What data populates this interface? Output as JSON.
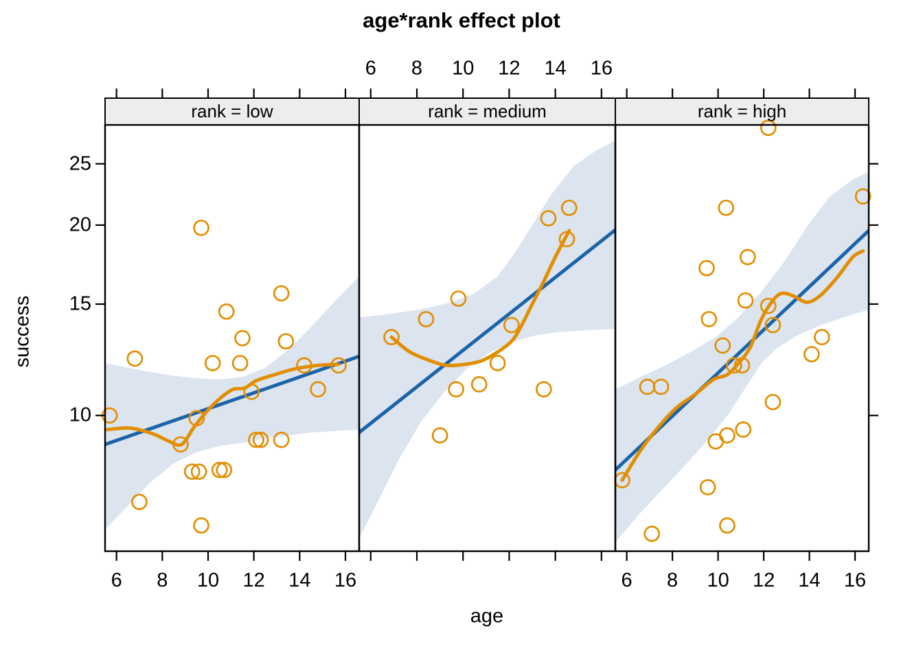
{
  "title": "age*rank effect plot",
  "colors": {
    "points_and_smooth": "#E28E00",
    "fit_line": "#1C63A8",
    "confidence_band": "#DBE4EF",
    "strip_background": "#EDEDED",
    "border": "#000000",
    "text": "#000000"
  },
  "chart_data": {
    "type": "scatter",
    "title": "age*rank effect plot",
    "xlabel": "age",
    "ylabel": "success",
    "x_ticks": [
      6,
      8,
      10,
      12,
      14,
      16
    ],
    "y_ticks": [
      10,
      15,
      20,
      25
    ],
    "x_range": [
      5.5,
      16.6
    ],
    "y_range": [
      6.1,
      28.8
    ],
    "y_scale": "log",
    "legend_position": "none",
    "grid": false,
    "panels": [
      {
        "strip_label": "rank = low",
        "points": [
          [
            5.7,
            10.0
          ],
          [
            6.8,
            12.3
          ],
          [
            7.0,
            7.3
          ],
          [
            8.8,
            9.0
          ],
          [
            9.3,
            8.15
          ],
          [
            9.5,
            9.9
          ],
          [
            9.6,
            8.15
          ],
          [
            9.7,
            19.8
          ],
          [
            9.7,
            6.7
          ],
          [
            10.2,
            12.1
          ],
          [
            10.5,
            8.2
          ],
          [
            10.7,
            8.2
          ],
          [
            10.8,
            14.6
          ],
          [
            11.4,
            12.1
          ],
          [
            11.5,
            13.25
          ],
          [
            11.9,
            10.9
          ],
          [
            12.1,
            9.15
          ],
          [
            12.3,
            9.15
          ],
          [
            13.2,
            15.6
          ],
          [
            13.2,
            9.15
          ],
          [
            13.4,
            13.1
          ],
          [
            14.2,
            12.0
          ],
          [
            14.8,
            11.0
          ],
          [
            15.7,
            12.0
          ]
        ],
        "fit_line": [
          [
            5.5,
            9.0
          ],
          [
            16.6,
            12.4
          ]
        ],
        "smooth": [
          [
            5.6,
            9.5
          ],
          [
            6.6,
            9.55
          ],
          [
            7.6,
            9.35
          ],
          [
            8.3,
            9.1
          ],
          [
            8.85,
            9.0
          ],
          [
            9.4,
            9.6
          ],
          [
            10.0,
            10.2
          ],
          [
            10.6,
            10.7
          ],
          [
            11.1,
            11.0
          ],
          [
            11.6,
            11.05
          ],
          [
            12.1,
            11.35
          ],
          [
            12.9,
            11.6
          ],
          [
            13.8,
            11.85
          ],
          [
            14.8,
            12.0
          ],
          [
            15.7,
            12.05
          ]
        ],
        "band_upper": [
          [
            5.5,
            12.1
          ],
          [
            7.0,
            11.8
          ],
          [
            8.5,
            11.55
          ],
          [
            9.5,
            11.45
          ],
          [
            10.5,
            11.4
          ],
          [
            11.5,
            11.5
          ],
          [
            12.5,
            11.9
          ],
          [
            13.5,
            12.7
          ],
          [
            14.5,
            13.8
          ],
          [
            15.5,
            15.1
          ],
          [
            16.6,
            16.6
          ]
        ],
        "band_lower": [
          [
            5.5,
            6.6
          ],
          [
            6.5,
            7.2
          ],
          [
            7.5,
            7.85
          ],
          [
            8.5,
            8.4
          ],
          [
            9.5,
            8.75
          ],
          [
            10.5,
            8.95
          ],
          [
            11.5,
            9.05
          ],
          [
            12.5,
            9.2
          ],
          [
            13.5,
            9.3
          ],
          [
            14.5,
            9.4
          ],
          [
            16.6,
            9.5
          ]
        ]
      },
      {
        "strip_label": "rank = medium",
        "points": [
          [
            6.9,
            13.3
          ],
          [
            8.4,
            14.2
          ],
          [
            9.0,
            9.3
          ],
          [
            9.7,
            11.0
          ],
          [
            9.8,
            15.3
          ],
          [
            10.7,
            11.2
          ],
          [
            11.5,
            12.1
          ],
          [
            12.1,
            13.9
          ],
          [
            13.5,
            11.0
          ],
          [
            13.7,
            20.5
          ],
          [
            14.5,
            19.0
          ],
          [
            14.6,
            21.3
          ]
        ],
        "fit_line": [
          [
            5.5,
            9.4
          ],
          [
            16.6,
            19.65
          ]
        ],
        "smooth": [
          [
            6.9,
            13.3
          ],
          [
            7.7,
            12.6
          ],
          [
            8.6,
            12.2
          ],
          [
            9.3,
            12.0
          ],
          [
            10.1,
            12.05
          ],
          [
            10.8,
            12.2
          ],
          [
            11.5,
            12.6
          ],
          [
            12.1,
            13.1
          ],
          [
            12.5,
            13.8
          ],
          [
            13.0,
            15.0
          ],
          [
            13.5,
            16.3
          ],
          [
            14.0,
            17.8
          ],
          [
            14.6,
            19.6
          ]
        ],
        "band_upper": [
          [
            5.5,
            14.3
          ],
          [
            7.0,
            14.5
          ],
          [
            8.3,
            14.75
          ],
          [
            9.5,
            15.1
          ],
          [
            10.5,
            15.6
          ],
          [
            11.5,
            16.6
          ],
          [
            12.3,
            18.2
          ],
          [
            13.0,
            20.0
          ],
          [
            13.8,
            22.3
          ],
          [
            14.8,
            24.8
          ],
          [
            15.8,
            26.3
          ],
          [
            16.6,
            27.2
          ]
        ],
        "band_lower": [
          [
            5.5,
            6.4
          ],
          [
            6.3,
            7.3
          ],
          [
            7.2,
            8.5
          ],
          [
            8.2,
            9.8
          ],
          [
            9.2,
            10.9
          ],
          [
            10.2,
            11.9
          ],
          [
            11.2,
            12.6
          ],
          [
            12.2,
            13.1
          ],
          [
            13.2,
            13.4
          ],
          [
            14.2,
            13.55
          ],
          [
            15.4,
            13.65
          ],
          [
            16.6,
            13.7
          ]
        ]
      },
      {
        "strip_label": "rank = high",
        "points": [
          [
            5.8,
            7.9
          ],
          [
            6.9,
            11.1
          ],
          [
            7.1,
            6.5
          ],
          [
            7.5,
            11.1
          ],
          [
            9.5,
            17.1
          ],
          [
            9.55,
            7.7
          ],
          [
            9.6,
            14.2
          ],
          [
            9.9,
            9.1
          ],
          [
            10.2,
            12.9
          ],
          [
            10.35,
            21.3
          ],
          [
            10.4,
            9.3
          ],
          [
            10.4,
            6.7
          ],
          [
            10.7,
            12.0
          ],
          [
            11.05,
            12.0
          ],
          [
            11.1,
            9.5
          ],
          [
            11.2,
            15.2
          ],
          [
            11.3,
            17.8
          ],
          [
            12.2,
            28.5
          ],
          [
            12.2,
            14.9
          ],
          [
            12.4,
            13.9
          ],
          [
            12.4,
            10.5
          ],
          [
            14.1,
            12.5
          ],
          [
            14.55,
            13.3
          ],
          [
            16.35,
            22.2
          ]
        ],
        "fit_line": [
          [
            5.5,
            8.2
          ],
          [
            16.6,
            19.6
          ]
        ],
        "smooth": [
          [
            5.8,
            7.9
          ],
          [
            6.6,
            8.8
          ],
          [
            7.4,
            9.6
          ],
          [
            8.2,
            10.3
          ],
          [
            9.0,
            10.8
          ],
          [
            9.8,
            11.4
          ],
          [
            10.4,
            11.6
          ],
          [
            10.9,
            12.1
          ],
          [
            11.4,
            12.8
          ],
          [
            11.9,
            14.2
          ],
          [
            12.4,
            15.2
          ],
          [
            12.8,
            15.6
          ],
          [
            13.3,
            15.45
          ],
          [
            13.9,
            15.1
          ],
          [
            14.5,
            15.5
          ],
          [
            15.2,
            16.5
          ],
          [
            15.9,
            17.8
          ],
          [
            16.35,
            18.2
          ]
        ],
        "band_upper": [
          [
            5.5,
            11.0
          ],
          [
            6.6,
            11.5
          ],
          [
            7.7,
            12.0
          ],
          [
            8.8,
            12.6
          ],
          [
            9.9,
            13.3
          ],
          [
            10.9,
            14.3
          ],
          [
            11.9,
            15.7
          ],
          [
            12.9,
            17.5
          ],
          [
            13.9,
            19.9
          ],
          [
            14.9,
            22.2
          ],
          [
            15.9,
            23.6
          ],
          [
            16.6,
            24.3
          ]
        ],
        "band_lower": [
          [
            5.5,
            6.3
          ],
          [
            6.5,
            6.95
          ],
          [
            7.5,
            7.6
          ],
          [
            8.5,
            8.3
          ],
          [
            9.5,
            9.1
          ],
          [
            10.5,
            10.1
          ],
          [
            11.3,
            11.2
          ],
          [
            11.9,
            12.1
          ],
          [
            12.6,
            12.8
          ],
          [
            13.5,
            13.4
          ],
          [
            14.5,
            13.9
          ],
          [
            15.5,
            14.3
          ],
          [
            16.6,
            14.7
          ]
        ]
      }
    ]
  }
}
